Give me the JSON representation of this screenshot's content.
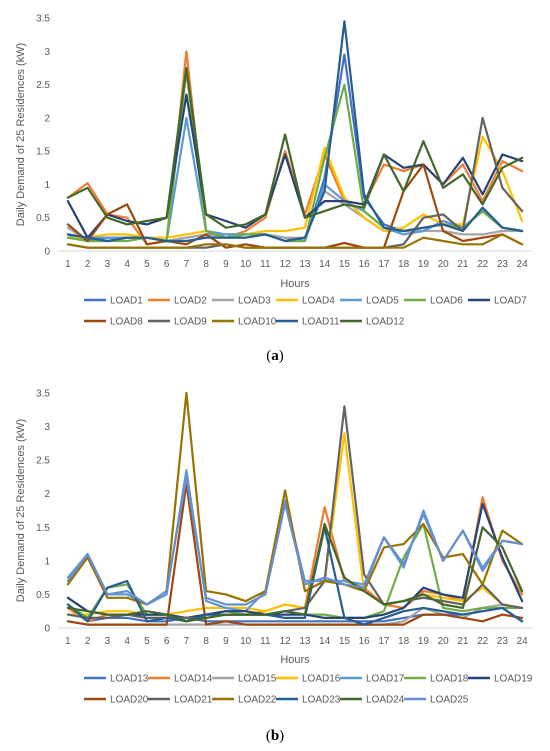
{
  "chart_data": [
    {
      "type": "line",
      "caption_open": "(",
      "caption_letter": "a",
      "caption_close": ")",
      "xlabel": "Hours",
      "ylabel": "Daily Demand of 25 Residences (kW)",
      "ylim": [
        0,
        3.5
      ],
      "yticks": [
        "0",
        "0.5",
        "1",
        "1.5",
        "2",
        "2.5",
        "3",
        "3.5"
      ],
      "x": [
        "1",
        "2",
        "3",
        "4",
        "5",
        "6",
        "7",
        "8",
        "9",
        "10",
        "11",
        "12",
        "13",
        "14",
        "15",
        "16",
        "17",
        "18",
        "19",
        "20",
        "21",
        "22",
        "23",
        "24"
      ],
      "grid": false,
      "legend_position": "bottom",
      "series": [
        {
          "name": "LOAD1",
          "color": "#4472C4",
          "values": [
            0.25,
            0.15,
            0.2,
            0.2,
            0.2,
            0.15,
            0.2,
            0.25,
            0.25,
            0.25,
            0.25,
            0.2,
            0.15,
            1.1,
            2.95,
            0.8,
            0.4,
            0.3,
            0.3,
            0.45,
            0.35,
            0.6,
            0.35,
            0.3
          ]
        },
        {
          "name": "LOAD2",
          "color": "#ED7D31",
          "values": [
            0.8,
            1.02,
            0.55,
            0.5,
            0.1,
            0.15,
            3.0,
            0.3,
            0.2,
            0.3,
            0.5,
            1.5,
            0.55,
            1.45,
            0.75,
            0.7,
            1.3,
            1.2,
            1.3,
            1.0,
            1.3,
            0.75,
            1.35,
            1.2
          ]
        },
        {
          "name": "LOAD3",
          "color": "#A5A5A5",
          "values": [
            0.35,
            0.15,
            0.15,
            0.2,
            0.2,
            0.15,
            0.2,
            0.25,
            0.2,
            0.2,
            0.25,
            0.2,
            0.2,
            0.9,
            0.7,
            0.5,
            0.3,
            0.3,
            0.3,
            0.3,
            0.25,
            0.25,
            0.3,
            0.3
          ]
        },
        {
          "name": "LOAD4",
          "color": "#FFC000",
          "values": [
            0.2,
            0.2,
            0.25,
            0.25,
            0.2,
            0.2,
            0.25,
            0.3,
            0.25,
            0.25,
            0.3,
            0.3,
            0.35,
            1.55,
            0.8,
            0.5,
            0.3,
            0.35,
            0.55,
            0.4,
            0.4,
            1.72,
            1.2,
            0.45
          ]
        },
        {
          "name": "LOAD5",
          "color": "#5B9BD5",
          "values": [
            0.25,
            0.2,
            0.2,
            0.2,
            0.2,
            0.15,
            2.0,
            0.3,
            0.25,
            0.25,
            0.25,
            0.15,
            0.15,
            1.0,
            0.75,
            0.6,
            0.35,
            0.25,
            0.3,
            0.45,
            0.35,
            0.6,
            0.35,
            0.3
          ]
        },
        {
          "name": "LOAD6",
          "color": "#70AD47",
          "values": [
            0.2,
            0.15,
            0.15,
            0.15,
            0.2,
            0.15,
            2.7,
            0.3,
            0.2,
            0.25,
            0.25,
            0.15,
            0.15,
            1.4,
            2.5,
            0.6,
            0.35,
            0.3,
            0.35,
            0.4,
            0.35,
            0.6,
            0.35,
            0.3
          ]
        },
        {
          "name": "LOAD7",
          "color": "#264478",
          "values": [
            0.75,
            0.2,
            0.55,
            0.45,
            0.4,
            0.5,
            2.35,
            0.55,
            0.45,
            0.35,
            0.55,
            1.45,
            0.5,
            0.75,
            0.75,
            0.7,
            1.45,
            1.25,
            1.3,
            1.0,
            1.4,
            0.85,
            1.45,
            1.35
          ]
        },
        {
          "name": "LOAD8",
          "color": "#9E480E",
          "values": [
            0.4,
            0.15,
            0.55,
            0.7,
            0.1,
            0.15,
            0.1,
            0.25,
            0.05,
            0.1,
            0.05,
            0.05,
            0.05,
            0.05,
            0.12,
            0.05,
            0.05,
            0.9,
            1.3,
            0.3,
            0.15,
            0.2,
            0.25,
            0.1
          ]
        },
        {
          "name": "LOAD9",
          "color": "#636363",
          "values": [
            0.1,
            0.05,
            0.05,
            0.05,
            0.05,
            0.05,
            0.05,
            0.05,
            0.1,
            0.05,
            0.05,
            0.05,
            0.05,
            0.05,
            0.05,
            0.05,
            0.05,
            0.1,
            0.5,
            0.55,
            0.3,
            2.0,
            0.95,
            0.6
          ]
        },
        {
          "name": "LOAD10",
          "color": "#997300",
          "values": [
            0.1,
            0.05,
            0.05,
            0.05,
            0.05,
            0.05,
            0.05,
            0.1,
            0.1,
            0.05,
            0.05,
            0.05,
            0.05,
            0.05,
            0.05,
            0.05,
            0.05,
            0.05,
            0.2,
            0.15,
            0.1,
            0.1,
            0.25,
            0.1
          ]
        },
        {
          "name": "LOAD11",
          "color": "#255E91",
          "values": [
            0.25,
            0.2,
            0.15,
            0.2,
            0.2,
            0.15,
            0.15,
            0.2,
            0.2,
            0.2,
            0.25,
            0.15,
            0.2,
            0.9,
            3.45,
            0.85,
            0.35,
            0.3,
            0.35,
            0.4,
            0.3,
            0.65,
            0.35,
            0.3
          ]
        },
        {
          "name": "LOAD12",
          "color": "#43682B",
          "values": [
            0.8,
            0.95,
            0.5,
            0.4,
            0.45,
            0.5,
            2.75,
            0.55,
            0.35,
            0.4,
            0.55,
            1.75,
            0.5,
            0.6,
            0.7,
            0.65,
            1.45,
            0.9,
            1.65,
            0.95,
            1.15,
            0.7,
            1.25,
            1.4
          ]
        }
      ]
    },
    {
      "type": "line",
      "caption_open": "(",
      "caption_letter": "b",
      "caption_close": ")",
      "xlabel": "Hours",
      "ylabel": "Daily Demand of 25 Residences (kW)",
      "ylim": [
        0,
        3.5
      ],
      "yticks": [
        "0",
        "0.5",
        "1",
        "1.5",
        "2",
        "2.5",
        "3",
        "3.5"
      ],
      "x": [
        "1",
        "2",
        "3",
        "4",
        "5",
        "6",
        "7",
        "8",
        "9",
        "10",
        "11",
        "12",
        "13",
        "14",
        "15",
        "16",
        "17",
        "18",
        "19",
        "20",
        "21",
        "22",
        "23",
        "24"
      ],
      "grid": false,
      "legend_position": "bottom",
      "series": [
        {
          "name": "LOAD13",
          "color": "#4472C4",
          "values": [
            0.3,
            0.1,
            0.15,
            0.15,
            0.1,
            0.1,
            0.15,
            0.1,
            0.1,
            0.1,
            0.1,
            0.1,
            0.1,
            0.1,
            0.1,
            0.1,
            0.1,
            0.15,
            0.2,
            0.2,
            0.2,
            0.25,
            0.3,
            0.1
          ]
        },
        {
          "name": "LOAD14",
          "color": "#ED7D31",
          "values": [
            0.3,
            0.1,
            0.2,
            0.2,
            0.15,
            0.15,
            0.15,
            0.2,
            0.2,
            0.2,
            0.25,
            0.35,
            0.3,
            1.8,
            0.7,
            0.6,
            0.35,
            0.3,
            0.55,
            0.5,
            0.4,
            1.95,
            1.0,
            0.5
          ]
        },
        {
          "name": "LOAD15",
          "color": "#A5A5A5",
          "values": [
            0.1,
            0.05,
            0.05,
            0.05,
            0.05,
            0.05,
            0.05,
            0.05,
            0.05,
            0.05,
            0.05,
            0.05,
            0.05,
            0.05,
            0.05,
            0.05,
            0.05,
            0.1,
            0.3,
            0.2,
            0.15,
            0.3,
            0.35,
            0.3
          ]
        },
        {
          "name": "LOAD16",
          "color": "#FFC000",
          "values": [
            0.2,
            0.2,
            0.25,
            0.25,
            0.2,
            0.2,
            0.25,
            0.3,
            0.3,
            0.3,
            0.25,
            0.35,
            0.3,
            0.7,
            2.9,
            0.55,
            0.35,
            0.4,
            0.5,
            0.45,
            0.4,
            0.6,
            0.35,
            0.3
          ]
        },
        {
          "name": "LOAD17",
          "color": "#5B9BD5",
          "values": [
            0.75,
            1.1,
            0.5,
            0.5,
            0.35,
            0.5,
            2.35,
            0.4,
            0.3,
            0.25,
            0.55,
            1.9,
            0.7,
            0.7,
            0.7,
            0.65,
            1.35,
            0.9,
            1.75,
            1.0,
            1.45,
            0.9,
            1.3,
            1.25
          ]
        },
        {
          "name": "LOAD18",
          "color": "#70AD47",
          "values": [
            0.35,
            0.15,
            0.6,
            0.65,
            0.2,
            0.2,
            0.15,
            0.2,
            0.25,
            0.2,
            0.2,
            0.25,
            0.2,
            0.2,
            0.15,
            0.15,
            0.25,
            1.05,
            1.55,
            0.3,
            0.25,
            0.3,
            0.3,
            0.3
          ]
        },
        {
          "name": "LOAD19",
          "color": "#264478",
          "values": [
            0.45,
            0.25,
            0.2,
            0.2,
            0.2,
            0.2,
            0.15,
            0.2,
            0.25,
            0.25,
            0.2,
            0.2,
            0.2,
            0.15,
            0.15,
            0.15,
            0.2,
            0.3,
            0.6,
            0.5,
            0.45,
            1.85,
            1.05,
            0.4
          ]
        },
        {
          "name": "LOAD20",
          "color": "#9E480E",
          "values": [
            0.1,
            0.05,
            0.05,
            0.05,
            0.05,
            0.05,
            2.15,
            0.05,
            0.1,
            0.05,
            0.05,
            0.05,
            0.05,
            0.05,
            0.05,
            0.05,
            0.05,
            0.05,
            0.2,
            0.2,
            0.15,
            0.1,
            0.2,
            0.15
          ]
        },
        {
          "name": "LOAD21",
          "color": "#636363",
          "values": [
            0.2,
            0.15,
            0.15,
            0.2,
            0.15,
            0.15,
            0.15,
            0.15,
            0.2,
            0.2,
            0.2,
            0.25,
            0.3,
            0.7,
            3.3,
            0.8,
            0.35,
            0.4,
            0.45,
            0.4,
            0.35,
            0.65,
            0.35,
            0.3
          ]
        },
        {
          "name": "LOAD22",
          "color": "#997300",
          "values": [
            0.65,
            1.05,
            0.45,
            0.45,
            0.35,
            0.55,
            3.5,
            0.55,
            0.5,
            0.4,
            0.55,
            2.05,
            0.55,
            0.7,
            0.65,
            0.55,
            1.2,
            1.25,
            1.55,
            1.05,
            1.1,
            0.65,
            1.45,
            1.25
          ]
        },
        {
          "name": "LOAD23",
          "color": "#255E91",
          "values": [
            0.35,
            0.1,
            0.6,
            0.7,
            0.1,
            0.15,
            0.1,
            0.2,
            0.2,
            0.2,
            0.2,
            0.15,
            0.15,
            1.5,
            0.15,
            0.05,
            0.15,
            0.25,
            0.3,
            0.25,
            0.2,
            0.25,
            0.3,
            0.1
          ]
        },
        {
          "name": "LOAD24",
          "color": "#43682B",
          "values": [
            0.3,
            0.25,
            0.2,
            0.2,
            0.25,
            0.2,
            0.1,
            0.15,
            0.2,
            0.2,
            0.2,
            0.25,
            0.2,
            1.55,
            0.75,
            0.55,
            0.35,
            0.4,
            0.5,
            0.35,
            0.3,
            1.5,
            1.2,
            0.55
          ]
        },
        {
          "name": "LOAD25",
          "color": "#698ED0",
          "values": [
            0.7,
            1.1,
            0.5,
            0.55,
            0.35,
            0.55,
            2.25,
            0.45,
            0.35,
            0.35,
            0.5,
            1.85,
            0.65,
            0.75,
            0.65,
            0.6,
            1.35,
            0.95,
            1.7,
            1.0,
            1.45,
            0.85,
            1.3,
            1.25
          ]
        }
      ]
    }
  ]
}
